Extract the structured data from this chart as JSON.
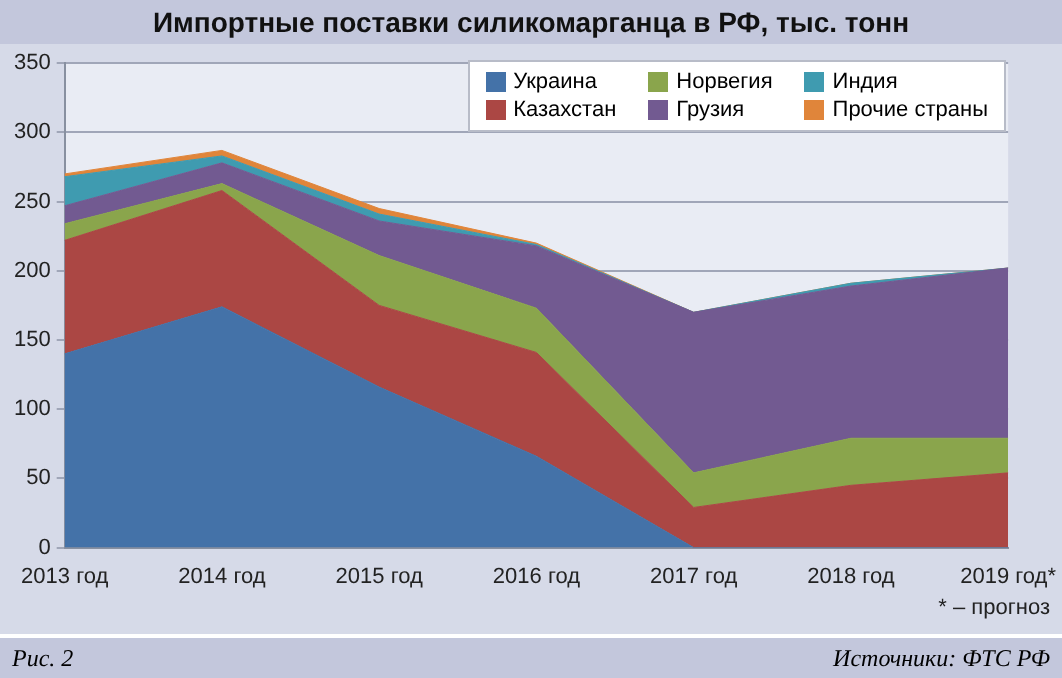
{
  "chart_data": {
    "type": "area",
    "title": "Импортные поставки силикомарганца в РФ, тыс. тонн",
    "categories": [
      "2013 год",
      "2014 год",
      "2015 год",
      "2016 год",
      "2017 год",
      "2018 год",
      "2019 год*"
    ],
    "stacked": true,
    "series": [
      {
        "name": "Украина",
        "color": "#4472a8",
        "values": [
          140,
          174,
          116,
          66,
          0,
          0,
          0
        ]
      },
      {
        "name": "Казахстан",
        "color": "#ab4744",
        "values": [
          82,
          84,
          59,
          75,
          29,
          45,
          54
        ]
      },
      {
        "name": "Норвегия",
        "color": "#8aa54c",
        "values": [
          12,
          5,
          36,
          32,
          25,
          34,
          25
        ]
      },
      {
        "name": "Грузия",
        "color": "#725a91",
        "values": [
          13,
          15,
          25,
          45,
          116,
          110,
          123
        ]
      },
      {
        "name": "Индия",
        "color": "#3f9bb0",
        "values": [
          21,
          5,
          5,
          1,
          0,
          2,
          0
        ]
      },
      {
        "name": "Прочие страны",
        "color": "#e0853a",
        "values": [
          2,
          4,
          4,
          1,
          0,
          0,
          0
        ]
      }
    ],
    "ylim": [
      0,
      350
    ],
    "yticks": [
      0,
      50,
      100,
      150,
      200,
      250,
      300,
      350
    ],
    "grid": "y",
    "legend": "top right",
    "annotations": [
      "* – прогноз",
      "Рис. 2",
      "Источники: ФТС РФ"
    ]
  }
}
